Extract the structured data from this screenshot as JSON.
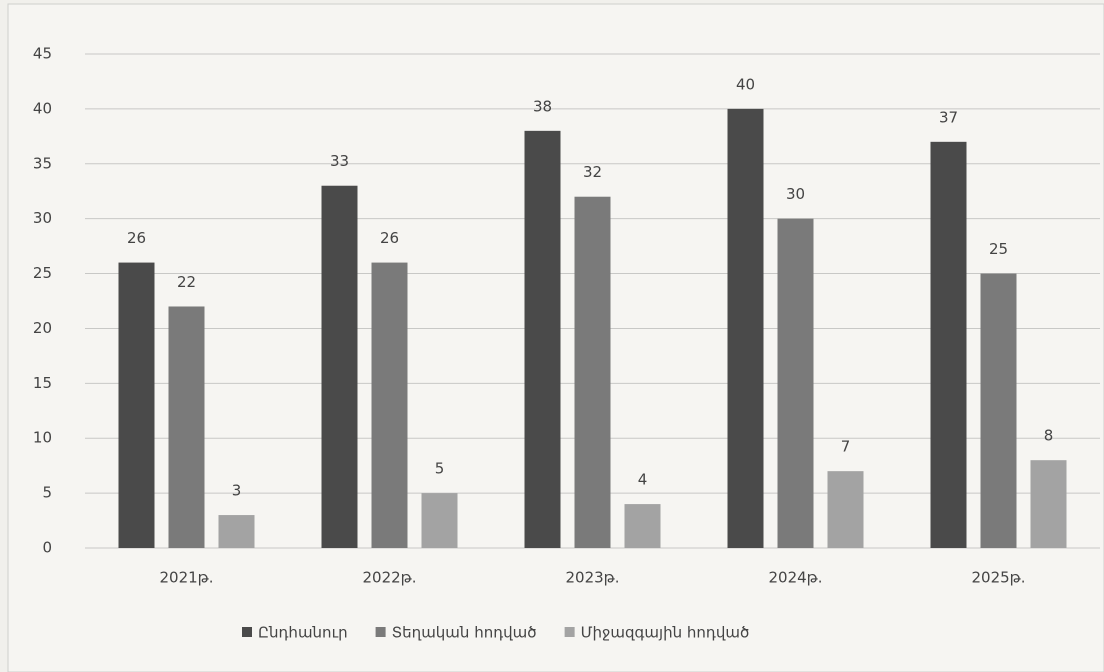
{
  "chart_data": {
    "type": "bar",
    "categories": [
      "2021թ.",
      "2022թ.",
      "2023թ.",
      "2024թ.",
      "2025թ."
    ],
    "series": [
      {
        "name": "Ընդհանուր",
        "color": "#4a4a4a",
        "values": [
          26,
          33,
          38,
          40,
          37
        ]
      },
      {
        "name": "Տեղական հոդված",
        "color": "#7a7a7a",
        "values": [
          22,
          26,
          32,
          30,
          25
        ]
      },
      {
        "name": "Միջազգային հոդված",
        "color": "#a3a3a3",
        "values": [
          3,
          5,
          4,
          7,
          8
        ]
      }
    ],
    "ylim": [
      0,
      45
    ],
    "yticks": [
      0,
      5,
      10,
      15,
      20,
      25,
      30,
      35,
      40,
      45
    ],
    "grid": true,
    "legend": "bottom"
  }
}
